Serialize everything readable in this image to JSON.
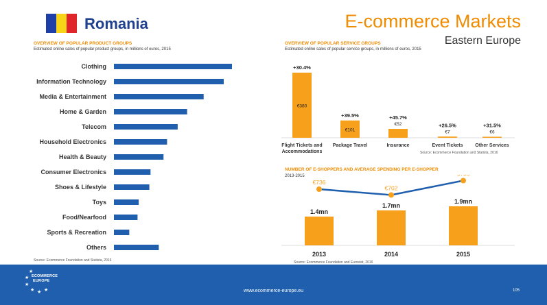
{
  "header": {
    "country": "Romania",
    "title": "E-commerce Markets",
    "region": "Eastern Europe",
    "flag_colors": [
      "#1e3fa8",
      "#f7d417",
      "#e0252b"
    ]
  },
  "product_section": {
    "title": "OVERVIEW OF POPULAR PRODUCT GROUPS",
    "subtitle": "Estimated online sales of popular product groups, in millions of euros, 2015",
    "source": "Source: Ecommerce Foundation and Statista, 2016"
  },
  "service_section": {
    "title": "OVERVIEW OF POPULAR SERVICE GROUPS",
    "subtitle": "Estimated online sales of popular service groups, in millions of euros, 2015",
    "source": "Source: Ecommerce Foundation and Statista, 2016"
  },
  "shopper_section": {
    "title": "NUMBER OF E-SHOPPERS AND AVERAGE SPENDING PER E-SHOPPER",
    "subtitle": "2013-2015",
    "source": "Source: Ecommerce Foundation and Eurostat, 2016"
  },
  "footer": {
    "logo_line1": "ECOMMERCE",
    "logo_line2": "EUROPE",
    "url": "www.ecommerce-europe.eu",
    "page": "105"
  },
  "chart_data": [
    {
      "id": "product-groups",
      "type": "bar",
      "orientation": "horizontal",
      "title": "OVERVIEW OF POPULAR PRODUCT GROUPS",
      "categories": [
        "Clothing",
        "Information Technology",
        "Media & Entertainment",
        "Home & Garden",
        "Telecom",
        "Household Electronics",
        "Health & Beauty",
        "Consumer Electronics",
        "Shoes & Lifestyle",
        "Toys",
        "Food/Nearfood",
        "Sports & Recreation",
        "Others"
      ],
      "values": [
        100,
        93,
        76,
        62,
        54,
        45,
        42,
        31,
        30,
        21,
        20,
        13,
        38
      ],
      "xlim": [
        0,
        100
      ],
      "color": "#1f5fae",
      "value_labels_shown": false
    },
    {
      "id": "service-groups",
      "type": "bar",
      "title": "OVERVIEW OF POPULAR SERVICE GROUPS",
      "categories": [
        "Flight Tickets and Accommodations",
        "Package Travel",
        "Insurance",
        "Event Tickets",
        "Other Services"
      ],
      "category_labels": [
        [
          "Flight Tickets and",
          "Accommodations"
        ],
        [
          "Package Travel"
        ],
        [
          "Insurance"
        ],
        [
          "Event Tickets"
        ],
        [
          "Other Services"
        ]
      ],
      "values": [
        380,
        101,
        52,
        7,
        6
      ],
      "value_labels": [
        "€380",
        "€101",
        "€52",
        "€7",
        "€6"
      ],
      "growth_labels": [
        "+30.4%",
        "+39.5%",
        "+45.7%",
        "+26.5%",
        "+31.5%"
      ],
      "ylim": [
        0,
        380
      ],
      "color": "#f7a01c"
    },
    {
      "id": "e-shoppers",
      "type": "bar",
      "title": "NUMBER OF E-SHOPPERS AND AVERAGE SPENDING PER E-SHOPPER",
      "categories": [
        "2013",
        "2014",
        "2015"
      ],
      "series": [
        {
          "name": "Number of e-shoppers (mn)",
          "type": "bar",
          "values": [
            1.4,
            1.7,
            1.9
          ],
          "labels": [
            "1.4mn",
            "1.7mn",
            "1.9mn"
          ],
          "color": "#f7a01c"
        },
        {
          "name": "Average spending per e-shopper (€)",
          "type": "line",
          "values": [
            736,
            702,
            786
          ],
          "labels": [
            "€736",
            "€702",
            "€786"
          ],
          "color": "#1f5fae",
          "marker_color": "#f7a01c"
        }
      ],
      "bar_ylim": [
        0,
        1.9
      ],
      "line_ylim": [
        680,
        800
      ]
    }
  ]
}
